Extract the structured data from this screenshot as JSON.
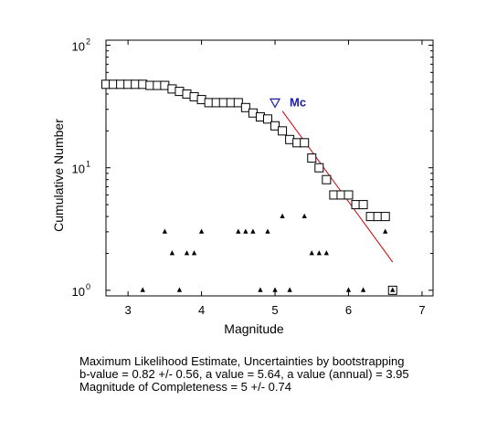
{
  "chart_data": {
    "type": "scatter",
    "xlabel": "Magnitude",
    "ylabel": "Cumulative Number",
    "xlim": [
      2.7,
      7.15
    ],
    "ylim": [
      0.9,
      110
    ],
    "yscale": "log",
    "x_ticks": [
      "3",
      "4",
      "5",
      "6",
      "7"
    ],
    "y_ticks": [
      {
        "base": "10",
        "exp": "0",
        "value": 1
      },
      {
        "base": "10",
        "exp": "1",
        "value": 10
      },
      {
        "base": "10",
        "exp": "2",
        "value": 100
      }
    ],
    "grid": false,
    "series": [
      {
        "marker": "square",
        "color": "#000000",
        "x": [
          2.7,
          2.8,
          2.9,
          3.0,
          3.1,
          3.2,
          3.3,
          3.4,
          3.5,
          3.6,
          3.7,
          3.8,
          3.9,
          4.0,
          4.1,
          4.2,
          4.3,
          4.4,
          4.5,
          4.6,
          4.7,
          4.8,
          4.9,
          5.0,
          5.1,
          5.2,
          5.3,
          5.4,
          5.5,
          5.6,
          5.7,
          5.8,
          5.9,
          6.0,
          6.1,
          6.2,
          6.3,
          6.4,
          6.5,
          6.6
        ],
        "y": [
          48,
          48,
          48,
          48,
          48,
          48,
          47,
          47,
          47,
          44,
          42,
          40,
          38,
          36,
          34,
          34,
          34,
          34,
          34,
          31,
          28,
          26,
          25,
          22,
          20,
          17,
          16,
          16,
          12,
          10,
          8,
          6,
          6,
          6,
          5,
          5,
          4,
          4,
          4,
          1
        ]
      },
      {
        "marker": "triangle",
        "color": "#000000",
        "x": [
          3.2,
          3.5,
          3.6,
          3.7,
          3.8,
          3.9,
          4.0,
          4.5,
          4.6,
          4.7,
          4.8,
          4.9,
          5.0,
          5.1,
          5.2,
          5.4,
          5.5,
          5.6,
          5.7,
          6.0,
          6.2,
          6.5
        ],
        "y": [
          1,
          3,
          2,
          1,
          2,
          2,
          3,
          3,
          3,
          3,
          1,
          3,
          1,
          4,
          1,
          4,
          2,
          2,
          2,
          1,
          1,
          3
        ]
      }
    ],
    "fit_line": {
      "color": "#cc0000",
      "x": [
        5.1,
        6.6
      ],
      "y": [
        29,
        1.7
      ]
    },
    "mc_marker": {
      "x": 5.0,
      "y": 34,
      "label": "Mc",
      "color": "#1a1aa6"
    }
  },
  "caption": {
    "line1": "Maximum Likelihood Estimate, Uncertainties by bootstrapping",
    "line2": "b-value = 0.82 +/- 0.56,  a value = 5.64,  a value (annual) = 3.95",
    "line3": "Magnitude of Completeness = 5 +/- 0.74"
  }
}
